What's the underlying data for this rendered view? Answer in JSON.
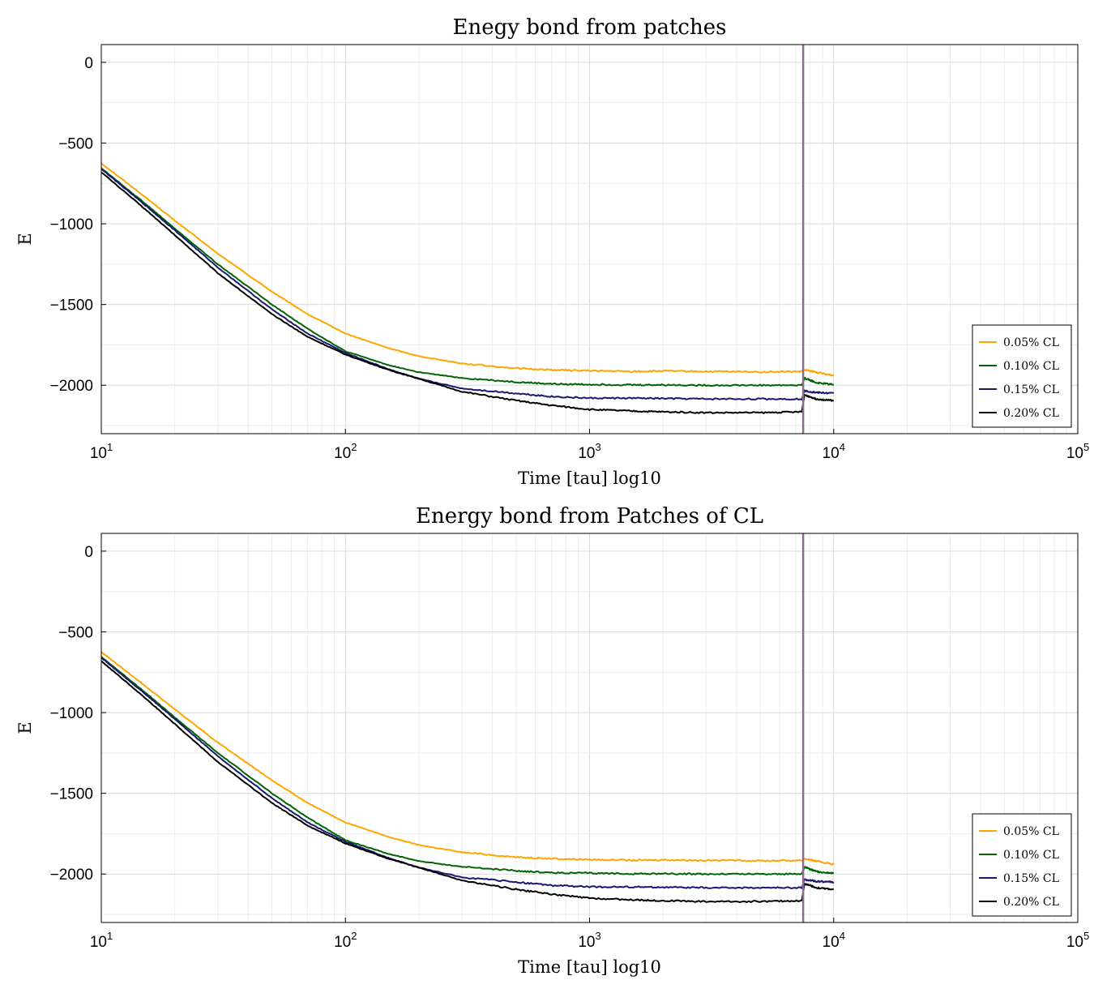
{
  "colors": {
    "series_0": "#FFA500",
    "series_1": "#006400",
    "series_2": "#191970",
    "series_3": "#000000",
    "vline": "#8B6C8C"
  },
  "chart_data": [
    {
      "type": "line",
      "title": "Enegy bond from patches",
      "xlabel": "Time [tau] log10",
      "ylabel": "E",
      "x_scale": "log10",
      "xlim": [
        10,
        100000
      ],
      "ylim": [
        -2300,
        110
      ],
      "xticks": [
        {
          "base": "10",
          "exp": "1"
        },
        {
          "base": "10",
          "exp": "2"
        },
        {
          "base": "10",
          "exp": "3"
        },
        {
          "base": "10",
          "exp": "4"
        },
        {
          "base": "10",
          "exp": "5"
        }
      ],
      "yticks": [
        "0",
        "−500",
        "−1000",
        "−1500",
        "−2000"
      ],
      "grid": true,
      "legend_position": "bottom-right",
      "vline_x": 7500,
      "x": [
        10,
        15,
        20,
        30,
        50,
        70,
        100,
        150,
        200,
        300,
        500,
        700,
        1000,
        1500,
        2000,
        3000,
        5000,
        7400,
        7600,
        8500,
        10000
      ],
      "series": [
        {
          "name": "0.05% CL",
          "color_key": "series_0",
          "values": [
            -625,
            -830,
            -980,
            -1185,
            -1420,
            -1560,
            -1680,
            -1770,
            -1820,
            -1865,
            -1895,
            -1905,
            -1910,
            -1915,
            -1912,
            -1915,
            -1918,
            -1915,
            -1905,
            -1920,
            -1940
          ]
        },
        {
          "name": "0.10% CL",
          "color_key": "series_1",
          "values": [
            -655,
            -870,
            -1030,
            -1250,
            -1500,
            -1650,
            -1790,
            -1875,
            -1920,
            -1955,
            -1980,
            -1992,
            -1995,
            -1998,
            -1998,
            -2000,
            -2000,
            -2000,
            -1955,
            -1985,
            -1995
          ]
        },
        {
          "name": "0.15% CL",
          "color_key": "series_2",
          "values": [
            -660,
            -880,
            -1040,
            -1270,
            -1530,
            -1680,
            -1800,
            -1900,
            -1960,
            -2020,
            -2050,
            -2070,
            -2080,
            -2080,
            -2082,
            -2085,
            -2085,
            -2085,
            -2035,
            -2045,
            -2050
          ]
        },
        {
          "name": "0.20% CL",
          "color_key": "series_3",
          "values": [
            -680,
            -905,
            -1070,
            -1305,
            -1560,
            -1700,
            -1810,
            -1905,
            -1960,
            -2040,
            -2095,
            -2125,
            -2150,
            -2160,
            -2165,
            -2170,
            -2170,
            -2165,
            -2060,
            -2085,
            -2095
          ]
        }
      ]
    },
    {
      "type": "line",
      "title": "Energy bond from Patches of CL",
      "xlabel": "Time [tau] log10",
      "ylabel": "E",
      "x_scale": "log10",
      "xlim": [
        10,
        100000
      ],
      "ylim": [
        -2300,
        110
      ],
      "xticks": [
        {
          "base": "10",
          "exp": "1"
        },
        {
          "base": "10",
          "exp": "2"
        },
        {
          "base": "10",
          "exp": "3"
        },
        {
          "base": "10",
          "exp": "4"
        },
        {
          "base": "10",
          "exp": "5"
        }
      ],
      "yticks": [
        "0",
        "−500",
        "−1000",
        "−1500",
        "−2000"
      ],
      "grid": true,
      "legend_position": "bottom-right",
      "vline_x": 7500,
      "x": [
        10,
        15,
        20,
        30,
        50,
        70,
        100,
        150,
        200,
        300,
        500,
        700,
        1000,
        1500,
        2000,
        3000,
        5000,
        7400,
        7600,
        8500,
        10000
      ],
      "series": [
        {
          "name": "0.05% CL",
          "color_key": "series_0",
          "values": [
            -625,
            -830,
            -980,
            -1185,
            -1420,
            -1560,
            -1680,
            -1770,
            -1820,
            -1865,
            -1895,
            -1905,
            -1910,
            -1915,
            -1912,
            -1915,
            -1918,
            -1915,
            -1905,
            -1920,
            -1940
          ]
        },
        {
          "name": "0.10% CL",
          "color_key": "series_1",
          "values": [
            -655,
            -870,
            -1030,
            -1250,
            -1500,
            -1650,
            -1790,
            -1875,
            -1920,
            -1955,
            -1980,
            -1992,
            -1995,
            -1998,
            -1998,
            -2000,
            -2000,
            -2000,
            -1955,
            -1985,
            -1995
          ]
        },
        {
          "name": "0.15% CL",
          "color_key": "series_2",
          "values": [
            -660,
            -880,
            -1040,
            -1270,
            -1530,
            -1680,
            -1800,
            -1900,
            -1960,
            -2020,
            -2050,
            -2070,
            -2080,
            -2080,
            -2082,
            -2085,
            -2085,
            -2085,
            -2035,
            -2045,
            -2050
          ]
        },
        {
          "name": "0.20% CL",
          "color_key": "series_3",
          "values": [
            -680,
            -905,
            -1070,
            -1305,
            -1560,
            -1700,
            -1810,
            -1905,
            -1960,
            -2040,
            -2095,
            -2125,
            -2150,
            -2160,
            -2165,
            -2170,
            -2170,
            -2165,
            -2060,
            -2085,
            -2095
          ]
        }
      ]
    }
  ]
}
